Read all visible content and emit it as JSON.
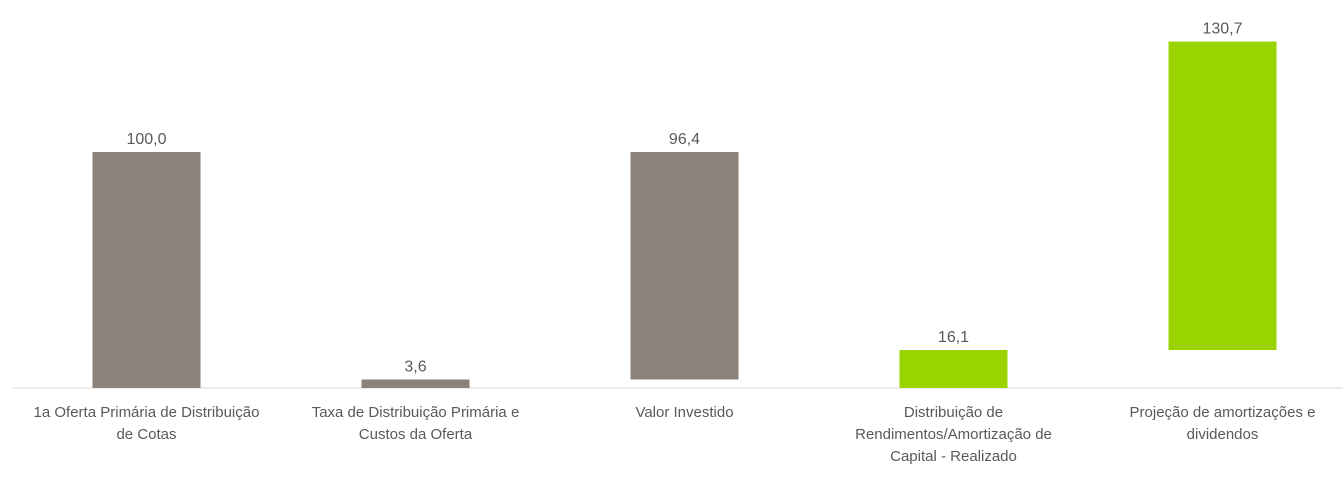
{
  "chart_data": {
    "type": "waterfall",
    "categories": [
      "1a Oferta Primária de Distribuição de Cotas",
      "Taxa de Distribuição Primária e Custos da Oferta",
      "Valor Investido",
      "Distribuição de Rendimentos/Amortização de Capital - Realizado",
      "Projeção de amortizações e dividendos"
    ],
    "values": [
      100.0,
      3.6,
      96.4,
      16.1,
      130.7
    ],
    "value_labels": [
      "100,0",
      "3,6",
      "96,4",
      "16,1",
      "130,7"
    ],
    "colors": [
      "#8c8279",
      "#8c8279",
      "#8c8279",
      "#99d400",
      "#99d400"
    ],
    "ylim": [
      0,
      150
    ]
  }
}
